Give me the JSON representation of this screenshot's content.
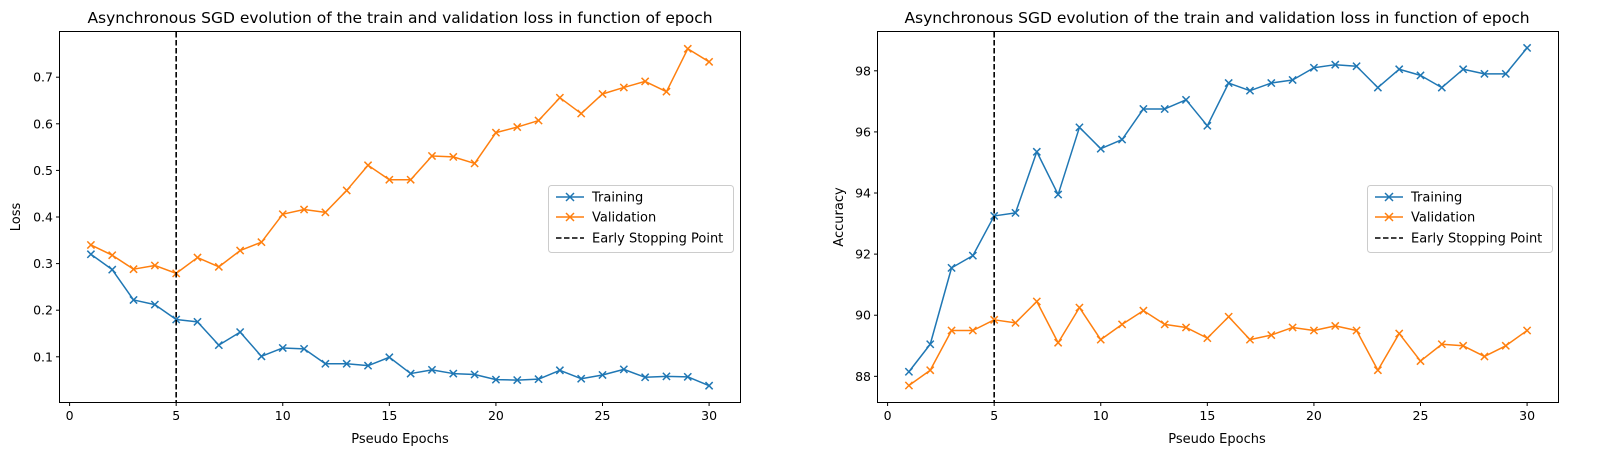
{
  "chart_data": [
    {
      "type": "line",
      "title": "Asynchronous SGD evolution of the train and validation loss in function of epoch",
      "xlabel": "Pseudo Epochs",
      "ylabel": "Loss",
      "xlim": [
        -0.45,
        31.45
      ],
      "ylim": [
        0.003,
        0.797
      ],
      "xticks": [
        0,
        5,
        10,
        15,
        20,
        25,
        30
      ],
      "yticks": [
        0.1,
        0.2,
        0.3,
        0.4,
        0.5,
        0.6,
        0.7
      ],
      "x": [
        1,
        2,
        3,
        4,
        5,
        6,
        7,
        8,
        9,
        10,
        11,
        12,
        13,
        14,
        15,
        16,
        17,
        18,
        19,
        20,
        21,
        22,
        23,
        24,
        25,
        26,
        27,
        28,
        29,
        30
      ],
      "series": [
        {
          "name": "Training",
          "color": "#1f77b4",
          "marker": "x",
          "values": [
            0.32,
            0.287,
            0.222,
            0.212,
            0.18,
            0.175,
            0.125,
            0.153,
            0.101,
            0.119,
            0.117,
            0.085,
            0.085,
            0.081,
            0.099,
            0.064,
            0.072,
            0.064,
            0.062,
            0.051,
            0.05,
            0.052,
            0.071,
            0.053,
            0.061,
            0.073,
            0.056,
            0.058,
            0.057,
            0.038
          ]
        },
        {
          "name": "Validation",
          "color": "#ff7f0e",
          "marker": "x",
          "values": [
            0.34,
            0.318,
            0.288,
            0.296,
            0.279,
            0.313,
            0.293,
            0.328,
            0.346,
            0.406,
            0.416,
            0.41,
            0.457,
            0.511,
            0.48,
            0.48,
            0.531,
            0.529,
            0.515,
            0.581,
            0.593,
            0.607,
            0.656,
            0.622,
            0.664,
            0.678,
            0.691,
            0.669,
            0.761,
            0.733
          ]
        }
      ],
      "vline": {
        "x": 5,
        "name": "Early Stopping Point",
        "color": "#000000",
        "style": "dashed"
      },
      "legend": "center-right",
      "grid": false
    },
    {
      "type": "line",
      "title": "Asynchronous SGD evolution of the train and validation loss in function of epoch",
      "xlabel": "Pseudo Epochs",
      "ylabel": "Accuracy",
      "xlim": [
        -0.45,
        31.45
      ],
      "ylim": [
        87.16,
        99.27
      ],
      "xticks": [
        0,
        5,
        10,
        15,
        20,
        25,
        30
      ],
      "yticks": [
        88,
        90,
        92,
        94,
        96,
        98
      ],
      "x": [
        1,
        2,
        3,
        4,
        5,
        6,
        7,
        8,
        9,
        10,
        11,
        12,
        13,
        14,
        15,
        16,
        17,
        18,
        19,
        20,
        21,
        22,
        23,
        24,
        25,
        26,
        27,
        28,
        29,
        30
      ],
      "series": [
        {
          "name": "Training",
          "color": "#1f77b4",
          "marker": "x",
          "values": [
            88.15,
            89.05,
            91.55,
            91.95,
            93.25,
            93.35,
            95.35,
            93.95,
            96.15,
            95.45,
            95.75,
            96.75,
            96.75,
            97.05,
            96.2,
            97.6,
            97.35,
            97.6,
            97.7,
            98.1,
            98.2,
            98.15,
            97.45,
            98.05,
            97.85,
            97.45,
            98.05,
            97.9,
            97.9,
            98.75
          ]
        },
        {
          "name": "Validation",
          "color": "#ff7f0e",
          "marker": "x",
          "values": [
            87.7,
            88.2,
            89.5,
            89.5,
            89.85,
            89.75,
            90.45,
            89.1,
            90.25,
            89.2,
            89.7,
            90.15,
            89.7,
            89.6,
            89.25,
            89.95,
            89.2,
            89.35,
            89.6,
            89.5,
            89.65,
            89.5,
            88.2,
            89.4,
            88.5,
            89.05,
            89.0,
            88.65,
            89.0,
            89.5
          ]
        }
      ],
      "vline": {
        "x": 5,
        "name": "Early Stopping Point",
        "color": "#000000",
        "style": "dashed"
      },
      "legend": "center-right",
      "grid": false
    }
  ]
}
